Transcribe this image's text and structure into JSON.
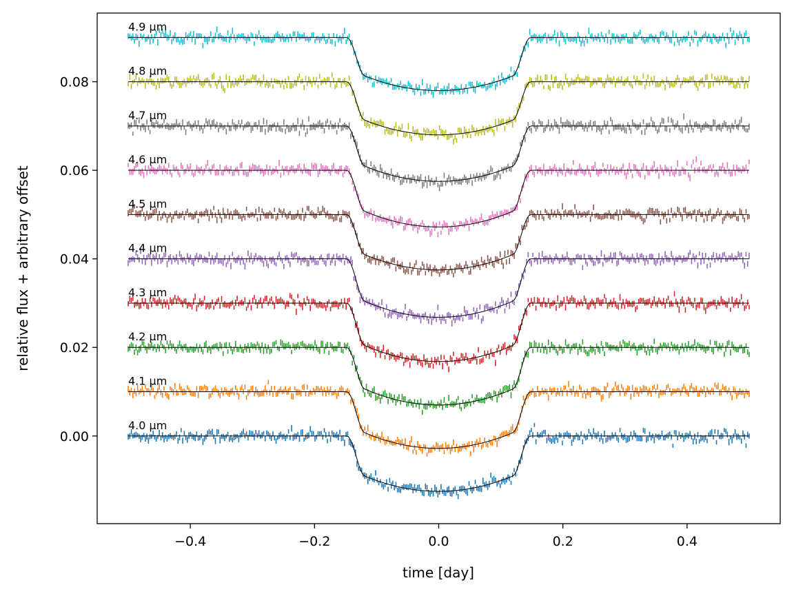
{
  "chart_data": {
    "type": "scatter",
    "title": "",
    "xlabel": "time [day]",
    "ylabel": "relative flux + arbitrary offset",
    "xlim": [
      -0.55,
      0.55
    ],
    "ylim": [
      -0.0198,
      0.0955
    ],
    "xticks": [
      -0.4,
      -0.2,
      0.0,
      0.2,
      0.4
    ],
    "xtick_labels": [
      "−0.4",
      "−0.2",
      "0.0",
      "0.2",
      "0.4"
    ],
    "yticks": [
      0.0,
      0.02,
      0.04,
      0.06,
      0.08
    ],
    "ytick_labels": [
      "0.00",
      "0.02",
      "0.04",
      "0.06",
      "0.08"
    ],
    "grid": false,
    "legend": "none",
    "x_range": [
      -0.5,
      0.5
    ],
    "transit": {
      "ingress_start": -0.148,
      "full_start": -0.12,
      "full_end": 0.12,
      "egress_end": 0.148
    },
    "model_color": "#000000",
    "series": [
      {
        "name": "4.0 µm",
        "offset": 0.0,
        "depth": 0.0125,
        "color": "#1f77b4",
        "label": "4.0 µm"
      },
      {
        "name": "4.1 µm",
        "offset": 0.01,
        "depth": 0.0128,
        "color": "#ff7f0e",
        "label": "4.1 µm"
      },
      {
        "name": "4.2 µm",
        "offset": 0.02,
        "depth": 0.013,
        "color": "#2ca02c",
        "label": "4.2 µm"
      },
      {
        "name": "4.3 µm",
        "offset": 0.03,
        "depth": 0.0132,
        "color": "#d62728",
        "label": "4.3 µm"
      },
      {
        "name": "4.4 µm",
        "offset": 0.04,
        "depth": 0.0132,
        "color": "#9467bd",
        "label": "4.4 µm"
      },
      {
        "name": "4.5 µm",
        "offset": 0.05,
        "depth": 0.0125,
        "color": "#8c564b",
        "label": "4.5 µm"
      },
      {
        "name": "4.6 µm",
        "offset": 0.06,
        "depth": 0.0128,
        "color": "#e377c2",
        "label": "4.6 µm"
      },
      {
        "name": "4.7 µm",
        "offset": 0.07,
        "depth": 0.0125,
        "color": "#7f7f7f",
        "label": "4.7 µm"
      },
      {
        "name": "4.8 µm",
        "offset": 0.08,
        "depth": 0.012,
        "color": "#bcbd22",
        "label": "4.8 µm"
      },
      {
        "name": "4.9 µm",
        "offset": 0.09,
        "depth": 0.012,
        "color": "#17becf",
        "label": "4.9 µm"
      }
    ]
  }
}
